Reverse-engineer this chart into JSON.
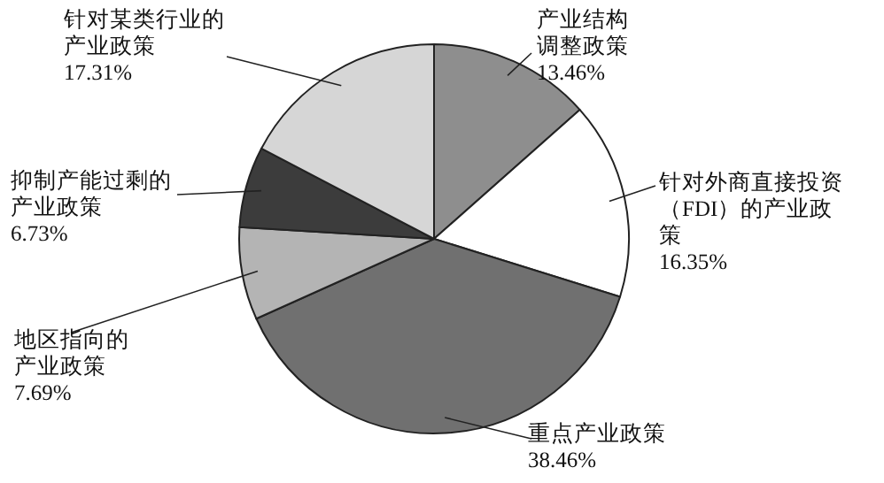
{
  "chart_data": {
    "type": "pie",
    "categories": [
      "产业结构调整政策",
      "针对外商直接投资（FDI）的产业政策",
      "重点产业政策",
      "地区指向的产业政策",
      "抑制产能过剩的产业政策",
      "针对某类行业的产业政策"
    ],
    "values": [
      13.46,
      16.35,
      38.46,
      7.69,
      6.73,
      17.31
    ],
    "value_labels": [
      "13.46%",
      "16.35%",
      "38.46%",
      "7.69%",
      "6.73%",
      "17.31%"
    ],
    "colors": [
      "#8e8e8e",
      "#ffffff",
      "#707070",
      "#b4b4b4",
      "#3c3c3c",
      "#d6d6d6"
    ]
  }
}
